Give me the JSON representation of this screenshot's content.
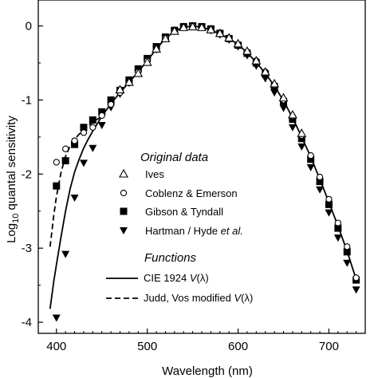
{
  "chart_data": {
    "type": "scatter",
    "title": "",
    "xlabel": "Wavelength (nm)",
    "ylabel_prefix": "Log",
    "ylabel_sub": "10",
    "ylabel_suffix": " quantal sensitivity",
    "xlim": [
      380,
      740
    ],
    "ylim": [
      -4.15,
      0.35
    ],
    "x_ticks": [
      400,
      500,
      600,
      700
    ],
    "x_tick_labels": [
      "400",
      "500",
      "600",
      "700"
    ],
    "y_ticks": [
      0,
      -1,
      -2,
      -3,
      -4
    ],
    "y_tick_labels": [
      "0",
      "-1",
      "-2",
      "-3",
      "-4"
    ],
    "grid": false,
    "legend": {
      "placement": "center-right",
      "group1_title": "Original data",
      "group2_title": "Functions",
      "entries": [
        {
          "marker": "open-triangle",
          "label": "Ives"
        },
        {
          "marker": "open-circle",
          "label": "Coblenz & Emerson"
        },
        {
          "marker": "filled-square",
          "label": "Gibson & Tyndall"
        },
        {
          "marker": "filled-triangle-down",
          "label_main": "Hartman / Hyde ",
          "label_italic": "et al."
        }
      ],
      "line_entries": [
        {
          "style": "solid",
          "label_main": "CIE 1924 ",
          "label_italic": "V",
          "label_tail": "(λ)"
        },
        {
          "style": "dashed",
          "label_main": "Judd, Vos modified ",
          "label_italic": "V",
          "label_tail": "(λ)"
        }
      ]
    },
    "series": [
      {
        "name": "Ives",
        "marker": "open-triangle",
        "x": [
          470,
          480,
          490,
          500,
          510,
          520,
          530,
          540,
          550,
          560,
          570,
          580,
          590,
          600,
          610,
          620,
          630,
          640,
          650,
          660,
          670
        ],
        "y": [
          -0.86,
          -0.76,
          -0.64,
          -0.49,
          -0.31,
          -0.17,
          -0.07,
          -0.02,
          -0.01,
          -0.02,
          -0.05,
          -0.1,
          -0.16,
          -0.24,
          -0.34,
          -0.47,
          -0.62,
          -0.78,
          -0.97,
          -1.2,
          -1.45
        ]
      },
      {
        "name": "Coblenz & Emerson",
        "marker": "open-circle",
        "x": [
          400,
          410,
          420,
          430,
          440,
          450,
          460,
          470,
          480,
          490,
          500,
          510,
          520,
          530,
          540,
          550,
          560,
          570,
          580,
          590,
          600,
          610,
          620,
          630,
          640,
          650,
          660,
          670,
          680,
          690,
          700,
          710,
          720,
          730
        ],
        "y": [
          -1.84,
          -1.66,
          -1.55,
          -1.44,
          -1.37,
          -1.21,
          -1.06,
          -0.9,
          -0.77,
          -0.62,
          -0.47,
          -0.31,
          -0.16,
          -0.07,
          -0.02,
          0.0,
          -0.02,
          -0.06,
          -0.11,
          -0.17,
          -0.25,
          -0.35,
          -0.47,
          -0.62,
          -0.8,
          -1.0,
          -1.22,
          -1.48,
          -1.75,
          -2.04,
          -2.34,
          -2.66,
          -2.98,
          -3.4
        ]
      },
      {
        "name": "Gibson & Tyndall",
        "marker": "filled-square",
        "x": [
          400,
          410,
          420,
          430,
          440,
          450,
          460,
          470,
          480,
          490,
          500,
          510,
          520,
          530,
          540,
          550,
          560,
          570,
          580,
          590,
          600,
          610,
          620,
          630,
          640,
          650,
          660,
          670,
          680,
          690,
          700,
          710,
          720,
          730
        ],
        "y": [
          -2.16,
          -1.82,
          -1.6,
          -1.37,
          -1.27,
          -1.16,
          -1.0,
          -0.87,
          -0.73,
          -0.58,
          -0.44,
          -0.28,
          -0.15,
          -0.06,
          -0.01,
          0.0,
          -0.01,
          -0.04,
          -0.1,
          -0.17,
          -0.26,
          -0.37,
          -0.5,
          -0.65,
          -0.82,
          -1.02,
          -1.26,
          -1.52,
          -1.8,
          -2.1,
          -2.41,
          -2.73,
          -3.05,
          -3.43
        ]
      },
      {
        "name": "Hartman / Hyde et al.",
        "marker": "filled-triangle-down",
        "x": [
          400,
          410,
          420,
          430,
          440,
          450,
          460,
          470,
          480,
          490,
          500,
          510,
          520,
          530,
          540,
          550,
          560,
          570,
          580,
          590,
          600,
          610,
          620,
          630,
          640,
          650,
          660,
          670,
          680,
          690,
          700,
          710,
          720,
          730
        ],
        "y": [
          -3.94,
          -3.08,
          -2.32,
          -1.85,
          -1.65,
          -1.34,
          -1.1,
          -0.92,
          -0.77,
          -0.63,
          -0.48,
          -0.32,
          -0.17,
          -0.07,
          -0.02,
          0.0,
          -0.02,
          -0.06,
          -0.12,
          -0.19,
          -0.28,
          -0.4,
          -0.54,
          -0.71,
          -0.9,
          -1.11,
          -1.37,
          -1.63,
          -1.91,
          -2.21,
          -2.52,
          -2.86,
          -3.2,
          -3.56
        ]
      }
    ],
    "lines": [
      {
        "name": "CIE 1924 V(λ)",
        "style": "solid",
        "x": [
          393,
          397,
          400,
          405,
          410,
          415,
          420,
          425,
          430,
          435,
          440,
          445,
          450,
          460,
          470,
          480,
          490,
          500,
          510,
          520,
          530,
          540,
          550,
          560,
          570,
          580,
          590,
          600,
          610,
          620,
          630,
          640,
          650,
          660,
          670,
          680,
          690,
          700,
          710,
          720,
          730
        ],
        "y": [
          -3.82,
          -3.45,
          -3.22,
          -2.85,
          -2.5,
          -2.2,
          -1.97,
          -1.8,
          -1.65,
          -1.53,
          -1.42,
          -1.32,
          -1.22,
          -1.05,
          -0.9,
          -0.76,
          -0.62,
          -0.47,
          -0.31,
          -0.17,
          -0.07,
          -0.02,
          0.0,
          -0.02,
          -0.05,
          -0.11,
          -0.17,
          -0.25,
          -0.36,
          -0.49,
          -0.64,
          -0.81,
          -1.01,
          -1.24,
          -1.5,
          -1.77,
          -2.07,
          -2.38,
          -2.7,
          -3.04,
          -3.42
        ]
      },
      {
        "name": "Judd, Vos modified V(λ)",
        "style": "dashed",
        "x": [
          393,
          397,
          400,
          405,
          410,
          415,
          420,
          425,
          430,
          435,
          440,
          445,
          450
        ],
        "y": [
          -2.98,
          -2.56,
          -2.3,
          -1.98,
          -1.76,
          -1.62,
          -1.53,
          -1.46,
          -1.4,
          -1.35,
          -1.3,
          -1.26,
          -1.22
        ]
      }
    ]
  }
}
